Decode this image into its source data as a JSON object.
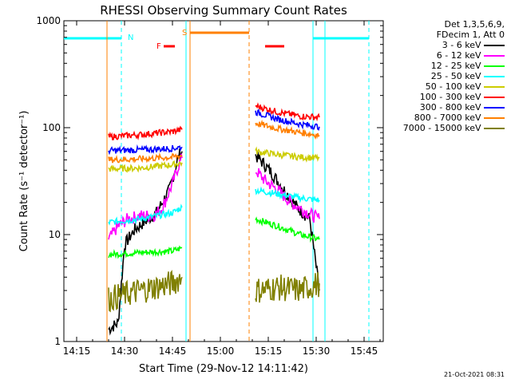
{
  "chart_data": {
    "type": "line",
    "title": "RHESSI Observing Summary Count Rates",
    "xlabel": "Start Time (29-Nov-12 14:11:42)",
    "ylabel": "Count Rate (s⁻¹ detector⁻¹)",
    "ylim": [
      1,
      1000
    ],
    "yscale": "log",
    "xlim_minutes": [
      "14:11",
      "15:51"
    ],
    "x_ticks": [
      "14:15",
      "14:30",
      "14:45",
      "15:00",
      "15:15",
      "15:30",
      "15:45"
    ],
    "y_ticks": [
      "1",
      "10",
      "100",
      "1000"
    ],
    "legend_header": [
      "Det 1,3,5,6,9,",
      "FDecim 1, Att 0"
    ],
    "time_marks": [
      "N",
      "S",
      "F"
    ],
    "series": [
      {
        "name": "3 - 6 keV",
        "color": "#000000",
        "segments": [
          {
            "t": [
              "14:25",
              "14:28",
              "14:30",
              "14:33",
              "14:36",
              "14:40",
              "14:44",
              "14:47",
              "14:48"
            ],
            "values": [
              1.3,
              1.5,
              8,
              11,
              13,
              16,
              26,
              55,
              60
            ]
          },
          {
            "t": [
              "15:11",
              "15:13",
              "15:16",
              "15:20",
              "15:24",
              "15:28",
              "15:31"
            ],
            "values": [
              55,
              48,
              38,
              26,
              18,
              14,
              3
            ]
          }
        ]
      },
      {
        "name": "6 - 12 keV",
        "color": "#ff00ff",
        "segments": [
          {
            "t": [
              "14:25",
              "14:28",
              "14:31",
              "14:35",
              "14:39",
              "14:42",
              "14:45",
              "14:47",
              "14:48"
            ],
            "values": [
              9,
              12,
              14,
              15,
              15,
              18,
              30,
              45,
              52
            ]
          },
          {
            "t": [
              "15:11",
              "15:14",
              "15:18",
              "15:22",
              "15:26",
              "15:29",
              "15:31"
            ],
            "values": [
              40,
              32,
              26,
              20,
              17,
              15,
              14
            ]
          }
        ]
      },
      {
        "name": "12 - 25 keV",
        "color": "#00ff00",
        "segments": [
          {
            "t": [
              "14:25",
              "14:35",
              "14:45",
              "14:48"
            ],
            "values": [
              6.5,
              6.8,
              7.0,
              7.5
            ]
          },
          {
            "t": [
              "15:11",
              "15:18",
              "15:25",
              "15:31"
            ],
            "values": [
              14,
              12,
              10,
              9
            ]
          }
        ]
      },
      {
        "name": "25 - 50 keV",
        "color": "#00ffff",
        "segments": [
          {
            "t": [
              "14:25",
              "14:35",
              "14:45",
              "14:48"
            ],
            "values": [
              13,
              14,
              16,
              18
            ]
          },
          {
            "t": [
              "15:11",
              "15:18",
              "15:25",
              "15:31"
            ],
            "values": [
              26,
              24,
              22,
              21
            ]
          }
        ]
      },
      {
        "name": "50 - 100 keV",
        "color": "#cccc00",
        "segments": [
          {
            "t": [
              "14:25",
              "14:35",
              "14:45",
              "14:48"
            ],
            "values": [
              41,
              42,
              45,
              47
            ]
          },
          {
            "t": [
              "15:11",
              "15:18",
              "15:25",
              "15:31"
            ],
            "values": [
              60,
              56,
              53,
              52
            ]
          }
        ]
      },
      {
        "name": "100 - 300 keV",
        "color": "#ff0000",
        "segments": [
          {
            "t": [
              "14:25",
              "14:35",
              "14:45",
              "14:48"
            ],
            "values": [
              82,
              86,
              92,
              96
            ]
          },
          {
            "t": [
              "15:11",
              "15:18",
              "15:25",
              "15:31"
            ],
            "values": [
              160,
              140,
              128,
              125
            ]
          }
        ]
      },
      {
        "name": "300 - 800 keV",
        "color": "#0000ff",
        "segments": [
          {
            "t": [
              "14:25",
              "14:35",
              "14:45",
              "14:48"
            ],
            "values": [
              61,
              62,
              64,
              66
            ]
          },
          {
            "t": [
              "15:11",
              "15:18",
              "15:25",
              "15:31"
            ],
            "values": [
              140,
              120,
              108,
              102
            ]
          }
        ]
      },
      {
        "name": "800 - 7000 keV",
        "color": "#ff8000",
        "segments": [
          {
            "t": [
              "14:25",
              "14:35",
              "14:45",
              "14:48"
            ],
            "values": [
              50,
              51,
              53,
              55
            ]
          },
          {
            "t": [
              "15:11",
              "15:18",
              "15:25",
              "15:31"
            ],
            "values": [
              110,
              98,
              90,
              85
            ]
          }
        ]
      },
      {
        "name": "7000 - 15000 keV",
        "color": "#808000",
        "segments": [
          {
            "t": [
              "14:25",
              "14:35",
              "14:45",
              "14:48"
            ],
            "values": [
              2.5,
              3.0,
              3.5,
              4.0
            ]
          },
          {
            "t": [
              "15:11",
              "15:18",
              "15:25",
              "15:31"
            ],
            "values": [
              3.0,
              3.2,
              3.0,
              3.5
            ]
          }
        ]
      }
    ]
  },
  "footer": "21-Oct-2021 08:31"
}
